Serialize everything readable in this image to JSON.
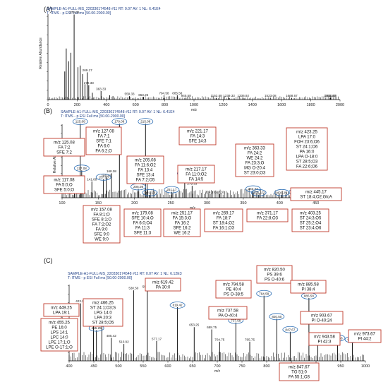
{
  "figure_colors": {
    "trace": "#000000",
    "box_border": "#c0392b",
    "ellipse": "#2e6fb5",
    "header_text": "#1f3f86"
  },
  "chart_data": [
    {
      "panel": "(A)",
      "type": "line",
      "header1": "SAMPLE-A1-FULL-MS_220330174548 #11  RT: 0.07  AV: 1  NL: 6.41E4",
      "header2": "T: ITMS - p ESI Full ms [50.00-2000.00]",
      "xlabel": "m/z",
      "ylabel": "Relative Abundance",
      "xlim": [
        0,
        2000
      ],
      "ylim": [
        0,
        100
      ],
      "x_ticks": [
        0,
        200,
        400,
        600,
        800,
        1000,
        1200,
        1400,
        1600,
        1800,
        2000
      ],
      "y_ticks": [
        0,
        10,
        20,
        30,
        40,
        50,
        60,
        70,
        80,
        90,
        100
      ],
      "peaks": [
        {
          "mz": 115,
          "rel": 33
        },
        {
          "mz": 125.08,
          "rel": 60
        },
        {
          "mz": 141,
          "rel": 45
        },
        {
          "mz": 157,
          "rel": 55
        },
        {
          "mz": 179.08,
          "rel": 100
        },
        {
          "mz": 205,
          "rel": 38
        },
        {
          "mz": 221,
          "rel": 40
        },
        {
          "mz": 237,
          "rel": 30
        },
        {
          "mz": 253,
          "rel": 18
        },
        {
          "mz": 269.17,
          "rel": 32
        },
        {
          "mz": 279.33,
          "rel": 17
        },
        {
          "mz": 304,
          "rel": 8
        },
        {
          "mz": 363.33,
          "rel": 10
        },
        {
          "mz": 423,
          "rel": 5
        },
        {
          "mz": 445,
          "rel": 4
        },
        {
          "mz": 558.33,
          "rel": 4
        },
        {
          "mz": 653.25,
          "rel": 3
        },
        {
          "mz": 794.58,
          "rel": 5
        },
        {
          "mz": 885.58,
          "rel": 5
        },
        {
          "mz": 945.58,
          "rel": 2
        },
        {
          "mz": 1152.58,
          "rel": 2
        },
        {
          "mz": 1239.33,
          "rel": 2
        },
        {
          "mz": 1336.92,
          "rel": 2
        },
        {
          "mz": 1523.08,
          "rel": 2
        },
        {
          "mz": 1668.67,
          "rel": 2
        },
        {
          "mz": 1931.67,
          "rel": 2
        },
        {
          "mz": 1936.08,
          "rel": 2
        }
      ],
      "labels": [
        {
          "mz": 179.08,
          "text": "179.08"
        },
        {
          "mz": 269.17,
          "text": "269.17"
        },
        {
          "mz": 279.33,
          "text": "279.33"
        },
        {
          "mz": 363.33,
          "text": "363.33"
        },
        {
          "mz": 558.33,
          "text": "558.33"
        },
        {
          "mz": 653.25,
          "text": "653.25"
        },
        {
          "mz": 794.58,
          "text": "794.58"
        },
        {
          "mz": 885.58,
          "text": "885.58"
        },
        {
          "mz": 945.58,
          "text": "945.58"
        },
        {
          "mz": 1152.58,
          "text": "1152.58"
        },
        {
          "mz": 1239.33,
          "text": "1239.33"
        },
        {
          "mz": 1336.92,
          "text": "1336.92"
        },
        {
          "mz": 1523.08,
          "text": "1523.08"
        },
        {
          "mz": 1668.67,
          "text": "1668.67"
        },
        {
          "mz": 1931.67,
          "text": "1931.67"
        },
        {
          "mz": 1936.08,
          "text": "1936.08"
        }
      ]
    },
    {
      "panel": "(B)",
      "type": "line",
      "header1": "SAMPLE-A1-FULL-MS_220330174548 #11  RT: 0.07  AV: 1  NL: 6.41E4",
      "header2": "T: ITMS - p ESI Full ms [50.00-2000.00]",
      "xlabel": "m/z",
      "ylabel": "Relative Abundance",
      "xlim": [
        100,
        460
      ],
      "ylim": [
        0,
        100
      ],
      "x_ticks": [
        100,
        150,
        200,
        250,
        300,
        350,
        400,
        450
      ],
      "y_ticks": [
        0,
        10,
        20,
        30,
        40,
        50,
        60,
        70,
        80,
        90,
        100
      ],
      "peaks": [
        {
          "mz": 117.08,
          "rel": 8
        },
        {
          "mz": 125.08,
          "rel": 100
        },
        {
          "mz": 127.08,
          "rel": 37
        },
        {
          "mz": 141.08,
          "rel": 22
        },
        {
          "mz": 157.08,
          "rel": 25
        },
        {
          "mz": 160.92,
          "rel": 27
        },
        {
          "mz": 168.08,
          "rel": 33
        },
        {
          "mz": 179.08,
          "rel": 100
        },
        {
          "mz": 205.08,
          "rel": 12
        },
        {
          "mz": 215.08,
          "rel": 100
        },
        {
          "mz": 217.17,
          "rel": 25
        },
        {
          "mz": 221.17,
          "rel": 4
        },
        {
          "mz": 251.17,
          "rel": 8
        },
        {
          "mz": 269.17,
          "rel": 30
        },
        {
          "mz": 279.33,
          "rel": 16
        },
        {
          "mz": 304.17,
          "rel": 5
        },
        {
          "mz": 317.33,
          "rel": 5
        },
        {
          "mz": 363.33,
          "rel": 9
        },
        {
          "mz": 371.17,
          "rel": 4
        },
        {
          "mz": 403.25,
          "rel": 4
        },
        {
          "mz": 423.25,
          "rel": 5
        },
        {
          "mz": 445.17,
          "rel": 4
        }
      ],
      "ellipse_labels": [
        {
          "mz": 125.08,
          "text": "125.08"
        },
        {
          "mz": 127.08,
          "text": "127.08"
        },
        {
          "mz": 117.08,
          "text": "117.08"
        },
        {
          "mz": 157.08,
          "text": "157.08"
        },
        {
          "mz": 179.08,
          "text": "179.08"
        },
        {
          "mz": 205.08,
          "text": "205.08"
        },
        {
          "mz": 215.08,
          "text": "215.08"
        },
        {
          "mz": 217.17,
          "text": "217.17"
        },
        {
          "mz": 221.17,
          "text": "221.17"
        },
        {
          "mz": 251.17,
          "text": "251.17"
        },
        {
          "mz": 269.17,
          "text": "269.17"
        },
        {
          "mz": 363.33,
          "text": "363.33"
        },
        {
          "mz": 371.17,
          "text": "371.17"
        },
        {
          "mz": 403.25,
          "text": "403.25"
        },
        {
          "mz": 423.25,
          "text": "423.25"
        },
        {
          "mz": 445.17,
          "text": "445.17"
        }
      ],
      "plain_labels": [
        {
          "mz": 141.08,
          "text": "141.08"
        },
        {
          "mz": 160.92,
          "text": "160.92"
        },
        {
          "mz": 168.08,
          "text": "168.08"
        },
        {
          "mz": 279.33,
          "text": "279.33"
        },
        {
          "mz": 304.17,
          "text": "304.17"
        },
        {
          "mz": 317.33,
          "text": "317.33"
        }
      ],
      "annotations": [
        {
          "lines": [
            "m/z 125.08",
            "FA 7:2",
            "SFE 7:2"
          ]
        },
        {
          "lines": [
            "m/z 127.08",
            "FA 7:1",
            "SFE 7:1",
            "FA 6:0",
            "FA 6:2;O"
          ]
        },
        {
          "lines": [
            "m/z 117.08",
            "FA 5:0;O",
            "SFE 5:0;O"
          ]
        },
        {
          "lines": [
            "m/z 205.08",
            "FA 11:6;O2",
            "FA 13:4",
            "SFE 13:4",
            "FA 7:2;O5"
          ]
        },
        {
          "lines": [
            "m/z 221.17",
            "FA 14:3",
            "SFE 14:3"
          ]
        },
        {
          "lines": [
            "m/z 217.17",
            "FA 11:0;O2",
            "FA 14:5"
          ]
        },
        {
          "lines": [
            "m/z 363.33",
            "FA 24:2",
            "WE 24:2",
            "FA 23:3;O",
            "MG O-20:4",
            "ST 23:0;O3"
          ]
        },
        {
          "lines": [
            "m/z 423.25",
            "LPA 17:0",
            "FOH 23:6;O6",
            "ST 24:1;O6",
            "PA 16:0",
            "LPA O-18:0",
            "ST 28:5;O3",
            "FA 22:6;O6"
          ]
        },
        {
          "lines": [
            "m/z 445.17",
            "ST 18:4;O2;GlcA"
          ]
        },
        {
          "lines": [
            "m/z 157.08",
            "FA 8:1;O",
            "SFE 8:1;O",
            "FA 7:2;O2",
            "FA 9:0",
            "SFE 9:0",
            "WE 9:0"
          ]
        },
        {
          "lines": [
            "m/z 179.08",
            "SFE 10:4;O",
            "FA 6:0;O4",
            "FA 11:3",
            "SFE 11:3"
          ]
        },
        {
          "lines": [
            "m/z 251.17",
            "FA 15:3;O",
            "FA 16:2",
            "SFE 16:2",
            "WE 16:2"
          ]
        },
        {
          "lines": [
            "m/z 269.17",
            "FA 18:7",
            "ST 18:4;O2",
            "FA 16:1;O3"
          ]
        },
        {
          "lines": [
            "m/z 371.17",
            "FA 22:8;O3"
          ]
        },
        {
          "lines": [
            "m/z 403.25",
            "ST 24:3;O5",
            "ST 25:2;O4",
            "ST 23:4;O6"
          ]
        }
      ]
    },
    {
      "panel": "(C)",
      "type": "line",
      "header1": "SAMPLE-A1-FULL-MS_220330174548 #11  RT: 0.07  AV: 1  NL: 6.12E3",
      "header2": "T: ITMS - p ESI Full ms [50.00-2000.00]",
      "xlabel": "m/z",
      "ylabel": "Relative Abundance",
      "xlim": [
        400,
        1000
      ],
      "ylim": [
        0,
        100
      ],
      "x_ticks": [
        400,
        450,
        500,
        550,
        600,
        650,
        700,
        750,
        800,
        850,
        900,
        950,
        1000
      ],
      "y_ticks": [
        0,
        10,
        20,
        30,
        40,
        50,
        60,
        70,
        80,
        90,
        100
      ],
      "peaks": [
        {
          "mz": 423.25,
          "rel": 75
        },
        {
          "mz": 449.25,
          "rel": 68
        },
        {
          "mz": 455.25,
          "rel": 40
        },
        {
          "mz": 466.25,
          "rel": 48
        },
        {
          "mz": 485.42,
          "rel": 30
        },
        {
          "mz": 510.92,
          "rel": 22
        },
        {
          "mz": 530.5,
          "rel": 92
        },
        {
          "mz": 558.33,
          "rel": 94
        },
        {
          "mz": 577.17,
          "rel": 26
        },
        {
          "mz": 619.42,
          "rel": 70
        },
        {
          "mz": 653.25,
          "rel": 44
        },
        {
          "mz": 688.75,
          "rel": 41
        },
        {
          "mz": 704.75,
          "rel": 25
        },
        {
          "mz": 737.58,
          "rel": 50
        },
        {
          "mz": 765.75,
          "rel": 25
        },
        {
          "mz": 794.58,
          "rel": 85
        },
        {
          "mz": 820.5,
          "rel": 55
        },
        {
          "mz": 847.67,
          "rel": 38
        },
        {
          "mz": 885.58,
          "rel": 82
        },
        {
          "mz": 903.67,
          "rel": 25
        },
        {
          "mz": 943.58,
          "rel": 27
        },
        {
          "mz": 973.67,
          "rel": 25
        }
      ],
      "ellipse_labels": [
        {
          "mz": 449.25,
          "text": "449.25"
        },
        {
          "mz": 455.25,
          "text": "455.25"
        },
        {
          "mz": 466.25,
          "text": "466.25"
        },
        {
          "mz": 619.42,
          "text": "619.42"
        },
        {
          "mz": 737.58,
          "text": "737.58"
        },
        {
          "mz": 794.58,
          "text": "794.58"
        },
        {
          "mz": 820.5,
          "text": "820.50"
        },
        {
          "mz": 847.67,
          "text": "847.67"
        },
        {
          "mz": 885.58,
          "text": "885.58"
        },
        {
          "mz": 903.67,
          "text": "903.67"
        },
        {
          "mz": 943.58,
          "text": "943.58"
        },
        {
          "mz": 973.67,
          "text": "973.67"
        }
      ],
      "plain_labels": [
        {
          "mz": 423.25,
          "text": "423.25"
        },
        {
          "mz": 485.42,
          "text": "485.42"
        },
        {
          "mz": 510.92,
          "text": "510.92"
        },
        {
          "mz": 530.5,
          "text": "530.50"
        },
        {
          "mz": 558.33,
          "text": "558.33"
        },
        {
          "mz": 577.17,
          "text": "577.17"
        },
        {
          "mz": 653.25,
          "text": "653.25"
        },
        {
          "mz": 688.75,
          "text": "688.75"
        },
        {
          "mz": 704.75,
          "text": "704.75"
        },
        {
          "mz": 765.75,
          "text": "765.75"
        }
      ],
      "annotations": [
        {
          "lines": [
            "m/z 449.25",
            "LPA 19:1"
          ]
        },
        {
          "lines": [
            "m/z 455.25",
            "PE 16:0",
            "LPS 14:1",
            "LPC 14:0",
            "LPE 17:1;O",
            "LPE O-17:1;O"
          ]
        },
        {
          "lines": [
            "m/z 466.25",
            "ST 24:1;O3;S",
            "LPG 14:0",
            "LPA 20:3",
            "ST 28:5;O5"
          ]
        },
        {
          "lines": [
            "m/z 619.42",
            "PA 30:0"
          ]
        },
        {
          "lines": [
            "m/z 737.58",
            "PA O-40:4"
          ]
        },
        {
          "lines": [
            "m/z 794.58",
            "PE 40:4",
            "PS O-38:5"
          ]
        },
        {
          "lines": [
            "m/z 820.50",
            "PS 39:6",
            "PS O-40:6"
          ]
        },
        {
          "lines": [
            "m/z 885.58",
            "PI 38:4"
          ]
        },
        {
          "lines": [
            "m/z 903.67",
            "PI O-40:24"
          ]
        },
        {
          "lines": [
            "m/z 943.58",
            "PI 42:3"
          ]
        },
        {
          "lines": [
            "m/z 973.67",
            "PI 44:2"
          ]
        },
        {
          "lines": [
            "m/z 847.67",
            "TG 51:0",
            "FA 55:1;O3"
          ]
        }
      ]
    }
  ]
}
